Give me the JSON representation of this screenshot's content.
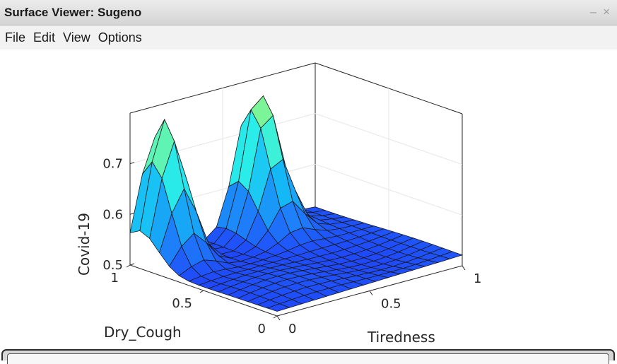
{
  "window": {
    "title": "Surface Viewer: Sugeno",
    "minimize": "–",
    "close": "×"
  },
  "menu": [
    {
      "label": "File"
    },
    {
      "label": "Edit"
    },
    {
      "label": "View"
    },
    {
      "label": "Options"
    }
  ],
  "chart_data": {
    "type": "surface",
    "zlabel": "Covid-19",
    "xlabel": "Tiredness",
    "ylabel": "Dry_Cough",
    "x_ticks": [
      "0",
      "0.5",
      "1"
    ],
    "y_ticks": [
      "0",
      "0.5",
      "1"
    ],
    "z_ticks": [
      "0.5",
      "0.6",
      "0.7"
    ],
    "xlim": [
      0,
      1
    ],
    "ylim": [
      0,
      1
    ],
    "zlim": [
      0.5,
      0.8
    ],
    "grid": true,
    "grid_size": 15,
    "colormap": [
      "#1f3ffb",
      "#1e7ffa",
      "#15b8f6",
      "#2bf0e8",
      "#6ff5a6",
      "#c8f84a"
    ],
    "peaks": [
      {
        "x": 0.13,
        "y": 0.93,
        "z": 0.785
      },
      {
        "x": 0.64,
        "y": 0.93,
        "z": 0.775
      }
    ]
  }
}
